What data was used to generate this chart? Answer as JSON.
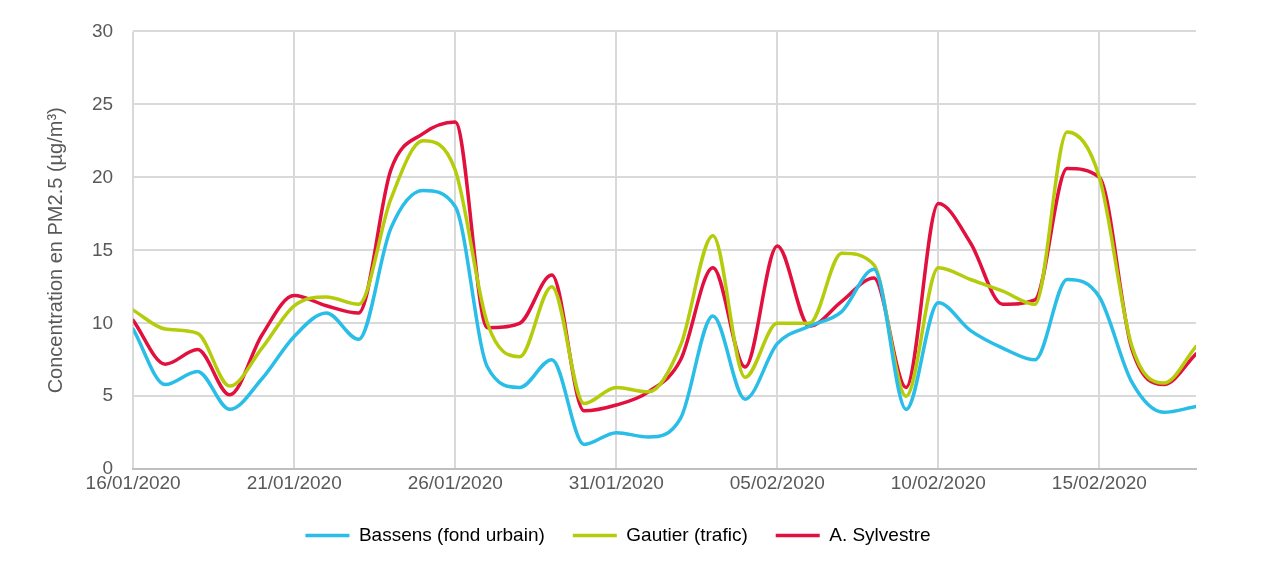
{
  "chart_data": {
    "type": "line",
    "ylabel": "Concentration en PM2.5 (µg/m³)",
    "x": [
      "2020-01-16",
      "2020-01-17",
      "2020-01-18",
      "2020-01-19",
      "2020-01-20",
      "2020-01-21",
      "2020-01-22",
      "2020-01-23",
      "2020-01-24",
      "2020-01-25",
      "2020-01-26",
      "2020-01-27",
      "2020-01-28",
      "2020-01-29",
      "2020-01-30",
      "2020-01-31",
      "2020-02-01",
      "2020-02-02",
      "2020-02-03",
      "2020-02-04",
      "2020-02-05",
      "2020-02-06",
      "2020-02-07",
      "2020-02-08",
      "2020-02-09",
      "2020-02-10",
      "2020-02-11",
      "2020-02-12",
      "2020-02-13",
      "2020-02-14",
      "2020-02-15",
      "2020-02-16",
      "2020-02-17",
      "2020-02-18"
    ],
    "series": [
      {
        "name": "Bassens (fond urbain)",
        "color": "#29bde8",
        "values": [
          9.6,
          5.8,
          6.7,
          4.1,
          6.2,
          9.1,
          10.7,
          8.9,
          16.5,
          19.1,
          18,
          7,
          5.6,
          7.5,
          1.7,
          2.5,
          2.2,
          3.5,
          10.5,
          4.8,
          8.6,
          9.8,
          10.8,
          13.7,
          4.1,
          11.4,
          9.5,
          8.3,
          7.5,
          13,
          11.8,
          6,
          3.9,
          4.3
        ]
      },
      {
        "name": "Gautier (trafic)",
        "color": "#b5cc0c",
        "values": [
          10.9,
          9.6,
          9.3,
          5.7,
          8.3,
          11.2,
          11.8,
          11.3,
          18.5,
          22.5,
          20.5,
          10,
          7.7,
          12.5,
          4.5,
          5.6,
          5.3,
          8.5,
          16,
          6.3,
          10,
          10,
          14.8,
          14,
          5,
          13.8,
          13,
          12.2,
          11.3,
          23.1,
          20,
          8.5,
          5.9,
          8.4
        ]
      },
      {
        "name": "A. Sylvestre",
        "color": "#e2103f",
        "values": [
          10.2,
          7.2,
          8.2,
          5.1,
          9.2,
          11.9,
          11.2,
          10.7,
          20.5,
          23,
          23.8,
          9.7,
          10,
          13.3,
          4,
          4.4,
          5.3,
          7.5,
          13.8,
          7,
          15.3,
          9.8,
          11.5,
          13.1,
          5.6,
          18.2,
          15.5,
          11.3,
          11.6,
          20.6,
          20,
          8.3,
          5.8,
          7.9
        ]
      }
    ],
    "xlim": [
      "2020-01-16",
      "2020-02-18"
    ],
    "xticks": [
      {
        "value": "2020-01-16",
        "label": "16/01/2020"
      },
      {
        "value": "2020-01-21",
        "label": "21/01/2020"
      },
      {
        "value": "2020-01-26",
        "label": "26/01/2020"
      },
      {
        "value": "2020-01-31",
        "label": "31/01/2020"
      },
      {
        "value": "2020-02-05",
        "label": "05/02/2020"
      },
      {
        "value": "2020-02-10",
        "label": "10/02/2020"
      },
      {
        "value": "2020-02-15",
        "label": "15/02/2020"
      }
    ],
    "ylim": [
      0,
      30
    ],
    "yticks": [
      0,
      5,
      10,
      15,
      20,
      25,
      30
    ],
    "grid": true,
    "legend": "bottom",
    "marker": "none",
    "line_style": "solid"
  }
}
